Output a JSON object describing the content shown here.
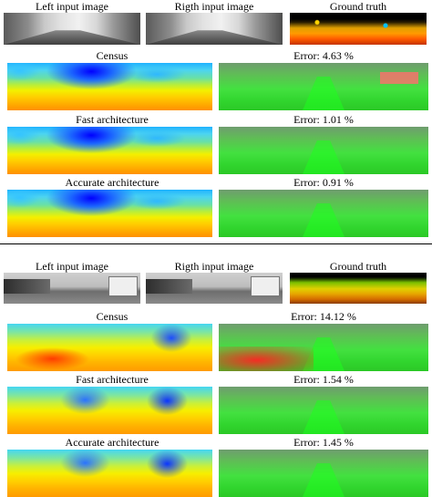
{
  "labels": {
    "left_input": "Left input image",
    "right_input": "Rigth input image",
    "ground_truth": "Ground truth",
    "census": "Census",
    "fast": "Fast architecture",
    "accurate": "Accurate architecture"
  },
  "example1": {
    "census_error": "Error: 4.63 %",
    "fast_error": "Error: 1.01 %",
    "accurate_error": "Error: 0.91 %"
  },
  "example2": {
    "census_error": "Error: 14.12 %",
    "fast_error": "Error: 1.54 %",
    "accurate_error": "Error: 1.45 %"
  },
  "colors": {
    "error_overlay_green": "#2bc826",
    "error_overlay_red": "#ff2323"
  }
}
